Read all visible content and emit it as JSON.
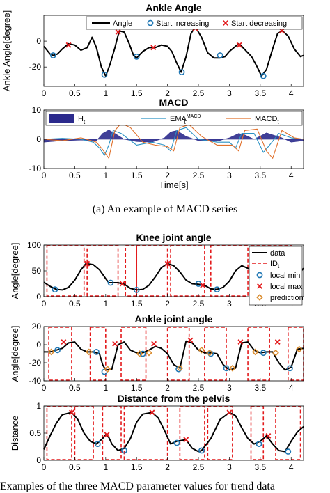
{
  "captions": {
    "sub_a": "(a) An example of MACD series",
    "bottom": "Examples of the three MACD parameter values for trend data"
  },
  "chart_data": [
    {
      "type": "line",
      "title": "Ankle Angle",
      "xlabel": "",
      "ylabel": "Ankle Angle[degree]",
      "xlim": [
        0,
        4.2
      ],
      "ylim": [
        -35,
        20
      ],
      "xticks": [
        0,
        0.5,
        1,
        1.5,
        2,
        2.5,
        3,
        3.5,
        4
      ],
      "xtick_labels": [
        "0",
        "0.5",
        "1",
        "1.5",
        "2",
        "2.5",
        "3",
        "3.5",
        "4"
      ],
      "yticks": [
        -20,
        0
      ],
      "ytick_labels": [
        "-20",
        "0"
      ],
      "legend": [
        "Angle",
        "Start increasing",
        "Start decreasing"
      ],
      "legend_position": "top-right",
      "series": [
        {
          "name": "Angle",
          "x": [
            0,
            0.1,
            0.15,
            0.22,
            0.3,
            0.4,
            0.5,
            0.6,
            0.7,
            0.78,
            0.85,
            0.93,
            1.0,
            1.07,
            1.15,
            1.22,
            1.3,
            1.38,
            1.45,
            1.5,
            1.6,
            1.7,
            1.8,
            1.9,
            2.0,
            2.07,
            2.15,
            2.22,
            2.3,
            2.38,
            2.45,
            2.55,
            2.65,
            2.75,
            2.85,
            2.93,
            3.0,
            3.1,
            3.15,
            3.2,
            3.28,
            3.36,
            3.45,
            3.52,
            3.6,
            3.7,
            3.78,
            3.86,
            3.95,
            4.05,
            4.15,
            4.2
          ],
          "y": [
            -4,
            -10,
            -11,
            -10,
            -6,
            -2,
            -3,
            -7,
            -5,
            3,
            -5,
            -20,
            -27,
            -18,
            -5,
            8,
            7,
            -2,
            -11,
            -13,
            -8,
            -5,
            -5,
            -3,
            -4,
            -8,
            -17,
            -24,
            -12,
            6,
            11,
            3,
            -9,
            -13,
            -13,
            -12,
            -8,
            -4,
            -2,
            -4,
            -8,
            -12,
            -20,
            -27,
            -22,
            -6,
            6,
            8,
            4,
            -6,
            -12,
            -11
          ]
        },
        {
          "name": "Start increasing",
          "x": [
            0.15,
            0.98,
            1.5,
            2.23,
            2.85,
            3.55
          ],
          "y": [
            -11,
            -26,
            -12,
            -24,
            -11,
            -27
          ]
        },
        {
          "name": "Start decreasing",
          "x": [
            0.4,
            1.2,
            1.77,
            2.45,
            3.16,
            3.85
          ],
          "y": [
            -3,
            7,
            -5,
            10,
            -3,
            8
          ]
        }
      ]
    },
    {
      "type": "line",
      "title": "MACD",
      "xlabel": "Time[s]",
      "ylabel": "",
      "xlim": [
        0,
        4.2
      ],
      "ylim": [
        -10,
        10
      ],
      "xticks": [
        0,
        0.5,
        1,
        1.5,
        2,
        2.5,
        3,
        3.5,
        4
      ],
      "xtick_labels": [
        "0",
        "0.5",
        "1",
        "1.5",
        "2",
        "2.5",
        "3",
        "3.5",
        "4"
      ],
      "yticks": [
        -10,
        0,
        10
      ],
      "ytick_labels": [
        "-10",
        "0",
        "10"
      ],
      "legend": [
        "H",
        "EMA",
        "MACD"
      ],
      "legend_subscripts": [
        "t",
        "t",
        "t"
      ],
      "legend_superscripts": [
        "",
        "MACD",
        ""
      ],
      "legend_position": "top-right",
      "series": [
        {
          "name": "H",
          "kind": "area",
          "color": "#2b2a8c",
          "x": [
            0,
            0.3,
            0.6,
            0.85,
            0.95,
            1.05,
            1.15,
            1.3,
            1.5,
            1.75,
            1.95,
            2.05,
            2.15,
            2.3,
            2.5,
            2.8,
            3.0,
            3.15,
            3.25,
            3.4,
            3.6,
            3.85,
            4.0,
            4.2
          ],
          "y": [
            -1,
            -0.5,
            -0.3,
            -0.5,
            2,
            3.2,
            2,
            0,
            -0.8,
            -1,
            0.5,
            2.5,
            3,
            1,
            -0.5,
            -0.7,
            0.5,
            2,
            1.5,
            0,
            2.2,
            0.5,
            -1,
            -0.5
          ]
        },
        {
          "name": "EMA",
          "color": "#2a92c4",
          "x": [
            0,
            0.3,
            0.6,
            0.8,
            0.9,
            0.98,
            1.05,
            1.12,
            1.25,
            1.5,
            1.75,
            1.95,
            2.05,
            2.15,
            2.3,
            2.5,
            2.8,
            3.0,
            3.1,
            3.2,
            3.4,
            3.55,
            3.65,
            3.8,
            4.0,
            4.2
          ],
          "y": [
            0,
            0.3,
            0,
            -1,
            -3,
            -5.5,
            -2,
            3,
            2,
            -2,
            -1,
            -2,
            -4,
            3,
            4,
            0,
            -1,
            -1,
            -3,
            2,
            2,
            -4.5,
            -2,
            2,
            0.5,
            0
          ]
        },
        {
          "name": "MACD",
          "color": "#e0702b",
          "x": [
            0,
            0.3,
            0.6,
            0.85,
            0.95,
            1.05,
            1.15,
            1.25,
            1.4,
            1.6,
            1.8,
            2.0,
            2.1,
            2.2,
            2.35,
            2.55,
            2.8,
            3.05,
            3.15,
            3.25,
            3.45,
            3.6,
            3.7,
            3.85,
            4.05,
            4.2
          ],
          "y": [
            0,
            -0.5,
            0.5,
            -1,
            -3.5,
            -6.5,
            3,
            5.5,
            4,
            -1,
            -2,
            -2.5,
            -4,
            4,
            5,
            1,
            -2,
            -2,
            -4,
            3,
            3.5,
            -4,
            -6.5,
            3,
            0.5,
            0
          ]
        }
      ]
    },
    {
      "type": "line",
      "title": "Knee joint angle",
      "xlabel": "",
      "ylabel": "Angle[degree]",
      "xlim": [
        0,
        4.2
      ],
      "ylim": [
        0,
        100
      ],
      "xticks": [
        0,
        0.5,
        1,
        1.5,
        2,
        2.5,
        3,
        3.5,
        4
      ],
      "xtick_labels": [
        "0",
        "0.5",
        "1",
        "1.5",
        "2",
        "2.5",
        "3",
        "3.5",
        "4"
      ],
      "yticks": [
        0,
        50,
        100
      ],
      "ytick_labels": [
        "0",
        "50",
        "100"
      ],
      "legend": [
        "data",
        "ID",
        "local min",
        "local max",
        "prediction"
      ],
      "legend_subscripts": [
        "",
        "t",
        "",
        "",
        ""
      ],
      "legend_position": "top-right",
      "id_windows": [
        [
          0.05,
          0.65
        ],
        [
          0.7,
          1.2
        ],
        [
          1.32,
          1.5
        ],
        [
          1.5,
          2.0
        ],
        [
          2.05,
          2.6
        ],
        [
          2.7,
          3.3
        ],
        [
          3.35,
          4.0
        ]
      ],
      "series": [
        {
          "name": "data",
          "x": [
            0,
            0.1,
            0.2,
            0.3,
            0.4,
            0.5,
            0.6,
            0.68,
            0.8,
            0.9,
            1.0,
            1.05,
            1.1,
            1.2,
            1.3,
            1.4,
            1.5,
            1.6,
            1.7,
            1.8,
            1.9,
            2.0,
            2.1,
            2.2,
            2.3,
            2.4,
            2.5,
            2.6,
            2.7,
            2.8,
            2.9,
            3.0,
            3.1,
            3.2,
            3.3,
            3.4,
            3.5,
            3.6,
            3.7,
            3.8,
            3.9,
            4.0,
            4.1,
            4.2
          ],
          "y": [
            28,
            20,
            14,
            13,
            18,
            32,
            52,
            64,
            62,
            52,
            35,
            27,
            27,
            27,
            24,
            16,
            13,
            14,
            22,
            38,
            56,
            64,
            60,
            48,
            32,
            25,
            24,
            22,
            15,
            14,
            18,
            30,
            50,
            60,
            55,
            42,
            30,
            24,
            18,
            14,
            14,
            20,
            40,
            55
          ]
        },
        {
          "name": "local min",
          "x": [
            0.18,
            1.08,
            1.5,
            2.5,
            2.8
          ],
          "y": [
            14,
            27,
            13,
            25,
            14
          ]
        },
        {
          "name": "local max",
          "x": [
            0.7,
            1.27,
            2.0,
            2.57
          ],
          "y": [
            64,
            25,
            64,
            22
          ]
        }
      ]
    },
    {
      "type": "line",
      "title": "Ankle joint angle",
      "xlabel": "",
      "ylabel": "Angle[degree]",
      "xlim": [
        0,
        4.2
      ],
      "ylim": [
        -40,
        20
      ],
      "xticks": [
        0,
        0.5,
        1,
        1.5,
        2,
        2.5,
        3,
        3.5,
        4
      ],
      "xtick_labels": [
        "0",
        "0.5",
        "1",
        "1.5",
        "2",
        "2.5",
        "3",
        "3.5",
        "4"
      ],
      "yticks": [
        -40,
        -20,
        0,
        20
      ],
      "ytick_labels": [
        "-40",
        "-20",
        "0",
        "20"
      ],
      "id_windows": [
        [
          0.08,
          0.45
        ],
        [
          0.75,
          1.0
        ],
        [
          1.25,
          1.65
        ],
        [
          2.0,
          2.35
        ],
        [
          2.6,
          2.95
        ],
        [
          3.3,
          3.65
        ],
        [
          3.95,
          4.2
        ]
      ],
      "series": [
        {
          "name": "data",
          "x": [
            0,
            0.1,
            0.2,
            0.3,
            0.4,
            0.5,
            0.6,
            0.7,
            0.8,
            0.9,
            0.95,
            1.0,
            1.1,
            1.2,
            1.3,
            1.4,
            1.5,
            1.6,
            1.7,
            1.8,
            1.9,
            2.0,
            2.1,
            2.2,
            2.3,
            2.4,
            2.5,
            2.6,
            2.7,
            2.8,
            2.9,
            3.0,
            3.1,
            3.2,
            3.3,
            3.4,
            3.5,
            3.6,
            3.7,
            3.8,
            3.9,
            4.0,
            4.1,
            4.2
          ],
          "y": [
            -8,
            -8,
            -6,
            -4,
            2,
            3,
            -5,
            -8,
            -8,
            -10,
            -22,
            -28,
            -27,
            0,
            3,
            -6,
            -9,
            -9,
            -6,
            -2,
            -4,
            -10,
            -22,
            -26,
            4,
            2,
            -6,
            -9,
            -9,
            -10,
            -22,
            -28,
            -26,
            2,
            3,
            -6,
            -9,
            -8,
            -8,
            -20,
            -28,
            -25,
            -5,
            -4
          ]
        },
        {
          "name": "local min",
          "x": [
            0.22,
            0.85,
            0.98,
            1.6,
            2.18,
            2.7,
            2.95,
            3.55,
            3.98
          ],
          "y": [
            -6,
            -8,
            -30,
            -10,
            -27,
            -10,
            -26,
            -9,
            -26
          ]
        },
        {
          "name": "local max",
          "x": [
            0.32,
            1.15,
            1.78,
            2.37,
            3.18,
            3.78
          ],
          "y": [
            3,
            1,
            1,
            5,
            3,
            3
          ]
        },
        {
          "name": "prediction",
          "x": [
            0.12,
            0.73,
            1.03,
            1.55,
            1.7,
            2.2,
            2.55,
            2.68,
            3.05,
            3.42,
            3.75,
            4.13
          ],
          "y": [
            -8,
            -8,
            -27,
            -10,
            -9,
            -26,
            -6,
            -9,
            -26,
            -8,
            -9,
            -5
          ]
        }
      ]
    },
    {
      "type": "line",
      "title": "Distance from the pelvis",
      "xlabel": "",
      "ylabel": "Distance",
      "xlim": [
        0,
        4.2
      ],
      "ylim": [
        0,
        1
      ],
      "xticks": [
        0,
        0.5,
        1,
        1.5,
        2,
        2.5,
        3,
        3.5,
        4
      ],
      "xtick_labels": [
        "0",
        "0.5",
        "1",
        "1.5",
        "2",
        "2.5",
        "3",
        "3.5",
        "4"
      ],
      "yticks": [
        0,
        0.5,
        1
      ],
      "ytick_labels": [
        "0",
        "0.5",
        "1"
      ],
      "id_windows": [
        [
          0.05,
          0.45
        ],
        [
          0.5,
          0.8
        ],
        [
          0.95,
          1.25
        ],
        [
          1.3,
          2.0
        ],
        [
          2.2,
          2.6
        ],
        [
          2.65,
          3.05
        ],
        [
          3.35,
          3.55
        ],
        [
          3.75,
          4.15
        ]
      ],
      "series": [
        {
          "name": "data",
          "x": [
            0,
            0.1,
            0.2,
            0.3,
            0.45,
            0.55,
            0.65,
            0.75,
            0.85,
            0.95,
            1.0,
            1.05,
            1.1,
            1.2,
            1.3,
            1.4,
            1.5,
            1.6,
            1.75,
            1.85,
            1.95,
            2.05,
            2.15,
            2.3,
            2.4,
            2.5,
            2.55,
            2.7,
            2.85,
            3.0,
            3.1,
            3.2,
            3.3,
            3.4,
            3.5,
            3.6,
            3.7,
            3.8,
            3.9,
            4.0,
            4.1,
            4.2
          ],
          "y": [
            0.2,
            0.45,
            0.68,
            0.84,
            0.88,
            0.75,
            0.5,
            0.35,
            0.3,
            0.4,
            0.47,
            0.42,
            0.3,
            0.18,
            0.22,
            0.4,
            0.7,
            0.85,
            0.88,
            0.78,
            0.55,
            0.3,
            0.35,
            0.38,
            0.22,
            0.16,
            0.18,
            0.4,
            0.75,
            0.88,
            0.82,
            0.6,
            0.4,
            0.3,
            0.35,
            0.45,
            0.3,
            0.18,
            0.16,
            0.35,
            0.52,
            0.62
          ]
        },
        {
          "name": "local min",
          "x": [
            0.87,
            1.3,
            2.15,
            2.55,
            3.48,
            3.95
          ],
          "y": [
            0.3,
            0.18,
            0.32,
            0.18,
            0.3,
            0.16
          ]
        },
        {
          "name": "local max",
          "x": [
            0.45,
            1.02,
            1.75,
            2.3,
            3.0,
            3.63
          ],
          "y": [
            0.88,
            0.47,
            0.88,
            0.38,
            0.88,
            0.45
          ]
        }
      ]
    }
  ]
}
